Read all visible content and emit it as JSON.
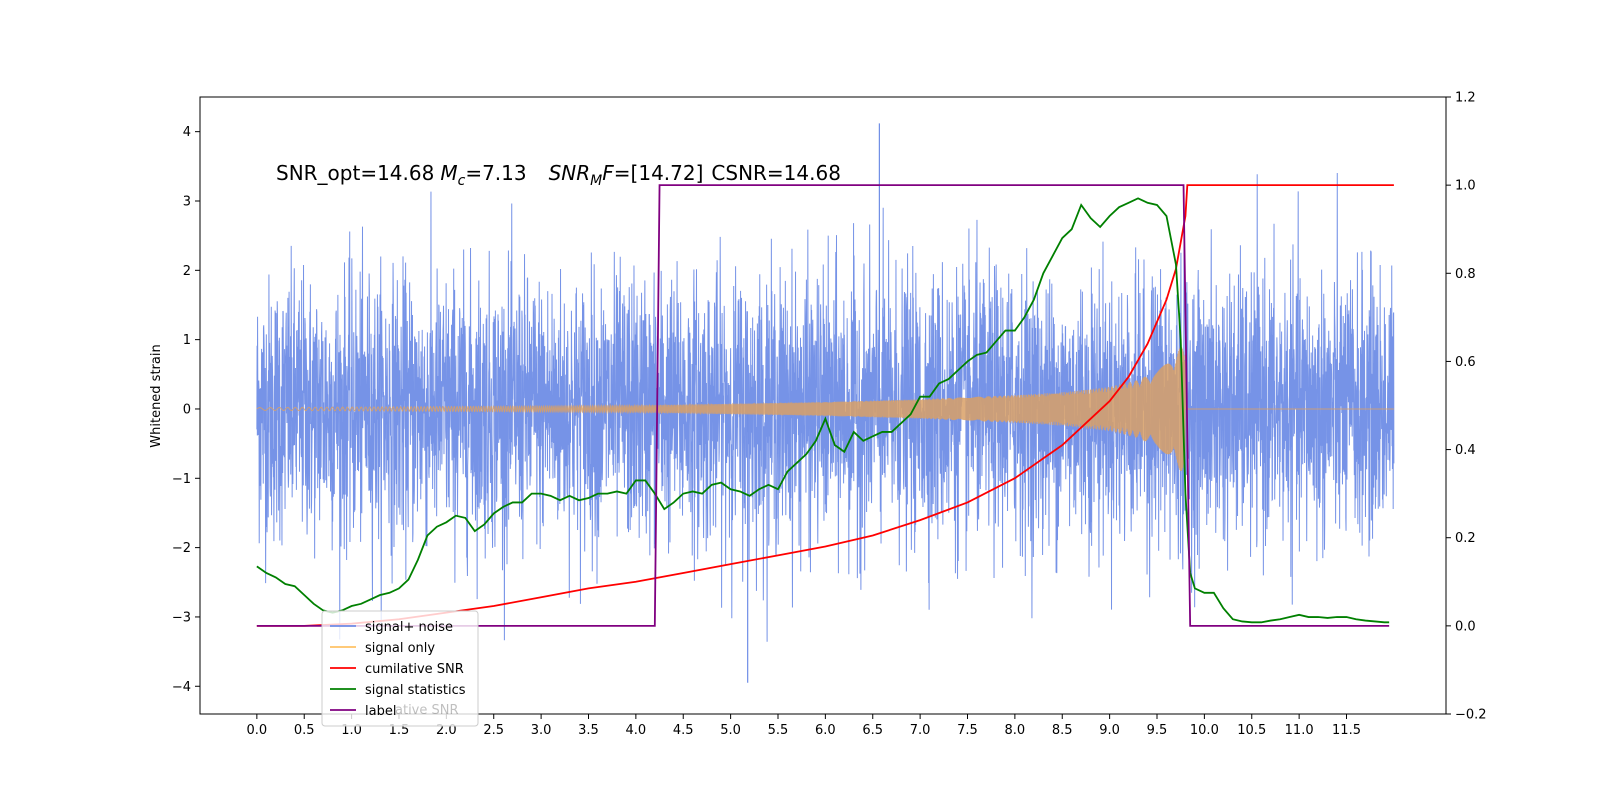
{
  "chart_data": {
    "type": "line",
    "title": "",
    "xlabel": "",
    "ylabel": "Whitened strain",
    "xlim": [
      -0.6,
      12.55
    ],
    "ylim": [
      -4.4,
      4.5
    ],
    "ylim_right": [
      -0.2,
      1.2
    ],
    "grid": false,
    "legend_position": "lower-left",
    "x_ticks": [
      "0.0",
      "0.5",
      "1.0",
      "1.5",
      "2.0",
      "2.5",
      "3.0",
      "3.5",
      "4.0",
      "4.5",
      "5.0",
      "5.5",
      "6.0",
      "6.5",
      "7.0",
      "7.5",
      "8.0",
      "8.5",
      "9.0",
      "9.5",
      "10.0",
      "10.5",
      "11.0",
      "11.5"
    ],
    "y_ticks_left": [
      "−4",
      "−3",
      "−2",
      "−1",
      "0",
      "1",
      "2",
      "3",
      "4"
    ],
    "y_ticks_right": [
      "−0.2",
      "0.0",
      "0.2",
      "0.4",
      "0.6",
      "0.8",
      "1.0",
      "1.2"
    ],
    "annotation": {
      "snr_opt": "SNR_opt=14.68",
      "mc": "=7.13",
      "snr_mf": "=[14.72]",
      "csnr": "CSNR=14.68"
    },
    "legend": [
      {
        "label": "signal+ noise",
        "color": "#6f8de6"
      },
      {
        "label": "signal only",
        "color": "#ffc266"
      },
      {
        "label": "cumilative SNR",
        "color": "#ff0000"
      },
      {
        "label": "signal statistics",
        "color": "#008000"
      },
      {
        "label": "label",
        "color": "#800080"
      }
    ],
    "legend_ghost_text": "ative SNR",
    "noise_envelope": {
      "x": [
        0,
        12
      ],
      "typical_range": [
        -2.0,
        2.0
      ],
      "extremes": {
        "max": 4.12,
        "min": -3.95
      }
    },
    "signal_only": {
      "x_start": 0,
      "x_merger": 9.8,
      "x_end": 12,
      "amplitude_points": [
        [
          0,
          0.02
        ],
        [
          4,
          0.05
        ],
        [
          6,
          0.1
        ],
        [
          7,
          0.14
        ],
        [
          8,
          0.2
        ],
        [
          8.5,
          0.24
        ],
        [
          9,
          0.32
        ],
        [
          9.3,
          0.42
        ],
        [
          9.5,
          0.55
        ],
        [
          9.7,
          0.8
        ],
        [
          9.8,
          1.0
        ]
      ]
    },
    "series": [
      {
        "name": "cumilative SNR",
        "axis": "right",
        "color": "#ff0000",
        "x": [
          0,
          0.5,
          1.0,
          1.5,
          2.0,
          2.5,
          3.0,
          3.5,
          4.0,
          4.5,
          5.0,
          5.5,
          6.0,
          6.5,
          7.0,
          7.5,
          8.0,
          8.5,
          9.0,
          9.2,
          9.4,
          9.6,
          9.7,
          9.8,
          9.82,
          12.0
        ],
        "y": [
          0.0,
          0.0,
          0.005,
          0.015,
          0.03,
          0.045,
          0.065,
          0.085,
          0.1,
          0.12,
          0.14,
          0.16,
          0.18,
          0.205,
          0.24,
          0.28,
          0.335,
          0.41,
          0.51,
          0.565,
          0.64,
          0.74,
          0.81,
          0.93,
          1.0,
          1.0
        ]
      },
      {
        "name": "signal statistics",
        "axis": "right",
        "color": "#008000",
        "x": [
          0,
          0.1,
          0.2,
          0.3,
          0.4,
          0.5,
          0.6,
          0.7,
          0.8,
          0.9,
          1.0,
          1.1,
          1.2,
          1.3,
          1.4,
          1.5,
          1.6,
          1.7,
          1.8,
          1.9,
          2.0,
          2.1,
          2.2,
          2.3,
          2.4,
          2.5,
          2.6,
          2.7,
          2.8,
          2.9,
          3.0,
          3.1,
          3.2,
          3.3,
          3.4,
          3.5,
          3.6,
          3.7,
          3.8,
          3.9,
          4.0,
          4.1,
          4.2,
          4.3,
          4.4,
          4.5,
          4.6,
          4.7,
          4.8,
          4.9,
          5.0,
          5.1,
          5.2,
          5.3,
          5.4,
          5.5,
          5.6,
          5.7,
          5.8,
          5.9,
          6.0,
          6.1,
          6.2,
          6.3,
          6.4,
          6.5,
          6.6,
          6.7,
          6.8,
          6.9,
          7.0,
          7.1,
          7.2,
          7.3,
          7.4,
          7.5,
          7.6,
          7.7,
          7.8,
          7.9,
          8.0,
          8.1,
          8.2,
          8.3,
          8.4,
          8.5,
          8.6,
          8.7,
          8.8,
          8.9,
          9.0,
          9.1,
          9.2,
          9.3,
          9.4,
          9.5,
          9.6,
          9.7,
          9.75,
          9.8,
          9.85,
          9.9,
          10.0,
          10.1,
          10.2,
          10.3,
          10.4,
          10.5,
          10.6,
          10.7,
          10.8,
          10.9,
          11.0,
          11.1,
          11.2,
          11.3,
          11.4,
          11.5,
          11.6,
          11.7,
          11.8,
          11.9,
          11.95
        ],
        "y": [
          0.135,
          0.12,
          0.11,
          0.095,
          0.09,
          0.07,
          0.05,
          0.035,
          0.03,
          0.035,
          0.045,
          0.05,
          0.06,
          0.07,
          0.075,
          0.085,
          0.105,
          0.15,
          0.205,
          0.225,
          0.235,
          0.25,
          0.245,
          0.215,
          0.23,
          0.255,
          0.27,
          0.28,
          0.28,
          0.3,
          0.3,
          0.295,
          0.285,
          0.295,
          0.285,
          0.29,
          0.3,
          0.3,
          0.305,
          0.3,
          0.33,
          0.33,
          0.3,
          0.265,
          0.28,
          0.3,
          0.305,
          0.3,
          0.32,
          0.325,
          0.31,
          0.305,
          0.295,
          0.31,
          0.32,
          0.31,
          0.35,
          0.37,
          0.39,
          0.42,
          0.47,
          0.41,
          0.395,
          0.44,
          0.42,
          0.43,
          0.44,
          0.44,
          0.46,
          0.48,
          0.52,
          0.52,
          0.55,
          0.56,
          0.58,
          0.6,
          0.615,
          0.62,
          0.645,
          0.67,
          0.67,
          0.7,
          0.74,
          0.8,
          0.84,
          0.88,
          0.9,
          0.955,
          0.925,
          0.905,
          0.93,
          0.95,
          0.96,
          0.97,
          0.96,
          0.955,
          0.93,
          0.82,
          0.65,
          0.3,
          0.12,
          0.085,
          0.075,
          0.075,
          0.04,
          0.015,
          0.01,
          0.008,
          0.008,
          0.012,
          0.015,
          0.02,
          0.025,
          0.02,
          0.02,
          0.018,
          0.02,
          0.02,
          0.015,
          0.012,
          0.01,
          0.008,
          0.008
        ]
      },
      {
        "name": "label",
        "axis": "right",
        "color": "#800080",
        "x": [
          0,
          4.2,
          4.25,
          9.78,
          9.85,
          11.95
        ],
        "y": [
          0,
          0,
          1,
          1,
          0,
          0
        ]
      }
    ]
  }
}
